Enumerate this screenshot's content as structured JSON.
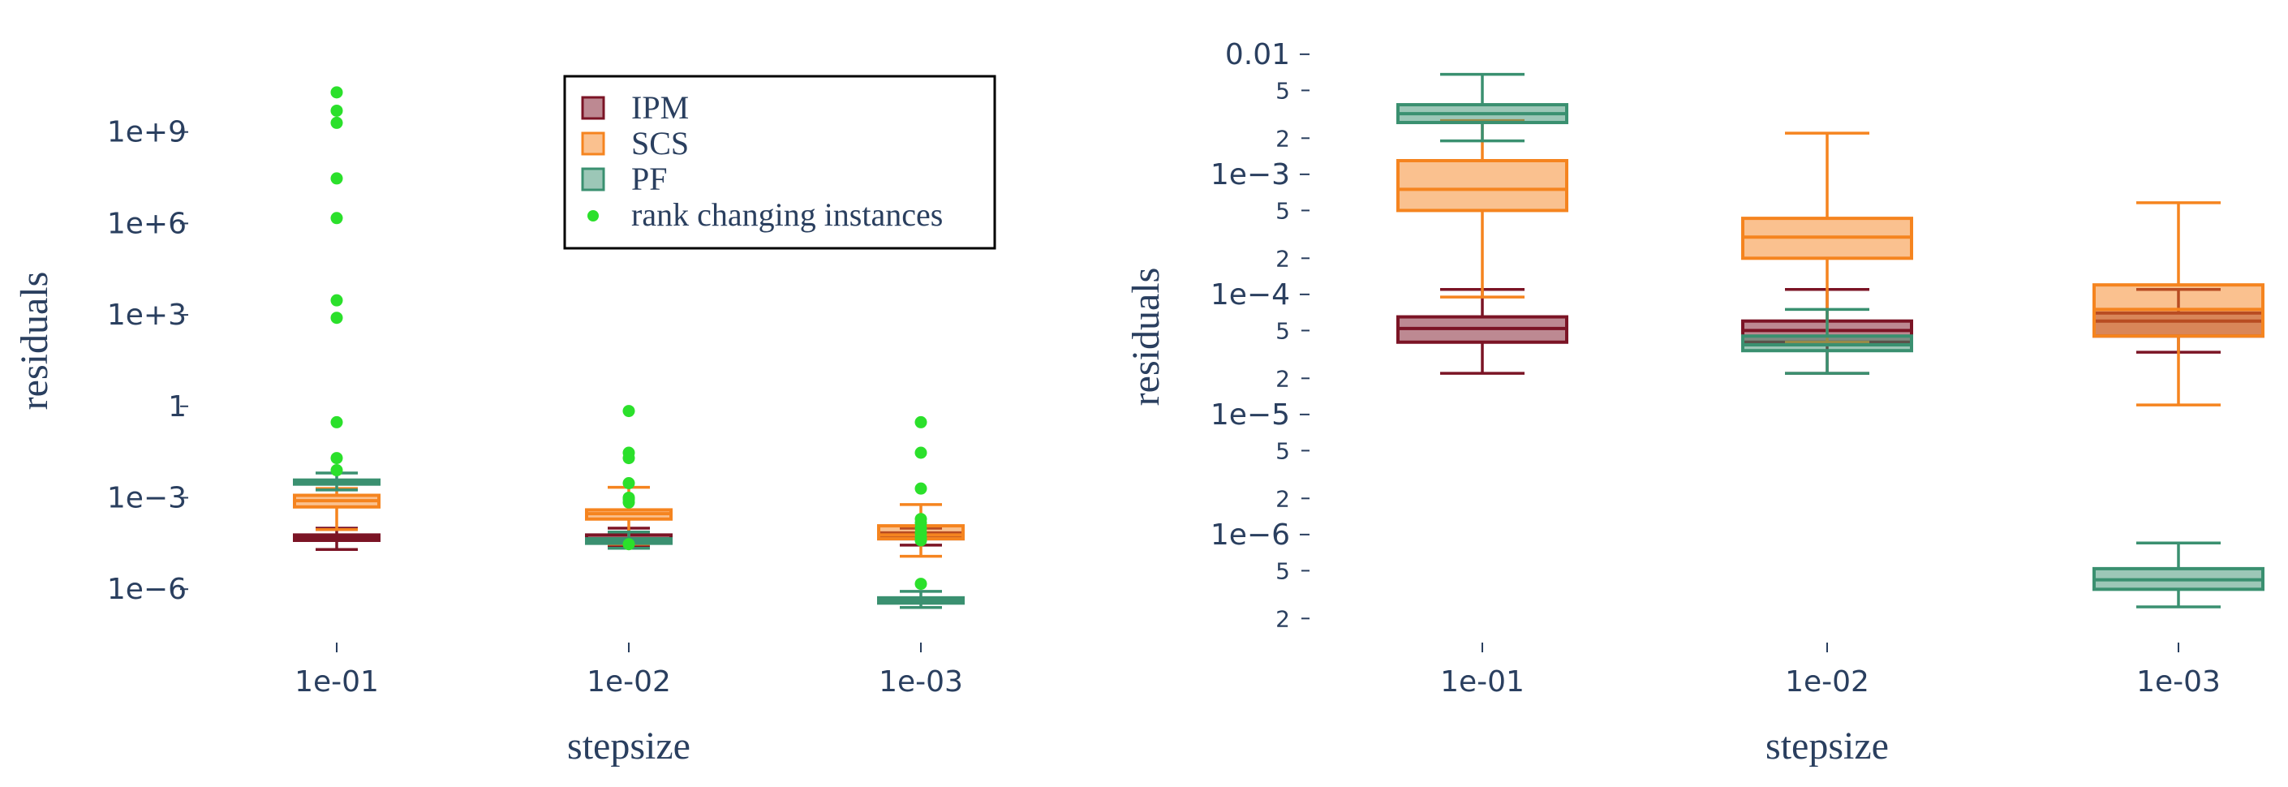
{
  "colors": {
    "IPM": "#7b1425",
    "SCS": "#f5841f",
    "PF": "#3a9070",
    "rank": "#2be02b",
    "axis_text": "#2a3f5f"
  },
  "chart_data": [
    {
      "type": "box",
      "xlabel": "stepsize",
      "ylabel": "residuals",
      "yscale": "log",
      "ylim": [
        2e-08,
        1000000000000.0
      ],
      "y_tick_values": [
        1000000000.0,
        1000000.0,
        1000.0,
        1,
        0.001,
        1e-06
      ],
      "y_tick_labels": [
        "1e+9",
        "1e+6",
        "1e+3",
        "1",
        "1e−3",
        "1e−6"
      ],
      "categories": [
        "1e-01",
        "1e-02",
        "1e-03"
      ],
      "legend": {
        "position": "top-center",
        "entries": [
          "IPM",
          "SCS",
          "PF",
          "rank changing instances"
        ]
      },
      "series": [
        {
          "name": "IPM",
          "boxes": [
            {
              "min": 2e-05,
              "q1": 4e-05,
              "median": 5e-05,
              "q3": 6e-05,
              "max": 0.0001
            },
            {
              "min": 2.5e-05,
              "q1": 3.5e-05,
              "median": 4.5e-05,
              "q3": 6e-05,
              "max": 0.0001
            },
            {
              "min": 2.8e-05,
              "q1": 4.5e-05,
              "median": 5.5e-05,
              "q3": 7e-05,
              "max": 0.0001
            }
          ]
        },
        {
          "name": "SCS",
          "boxes": [
            {
              "min": 9e-05,
              "q1": 0.0005,
              "median": 0.0008,
              "q3": 0.0012,
              "max": 0.002
            },
            {
              "min": 3e-05,
              "q1": 0.0002,
              "median": 0.0003,
              "q3": 0.0004,
              "max": 0.0022
            },
            {
              "min": 1.2e-05,
              "q1": 4.5e-05,
              "median": 6e-05,
              "q3": 0.00012,
              "max": 0.0006
            }
          ]
        },
        {
          "name": "PF",
          "boxes": [
            {
              "min": 0.0018,
              "q1": 0.0028,
              "median": 0.0032,
              "q3": 0.0038,
              "max": 0.0065
            },
            {
              "min": 2.2e-05,
              "q1": 3.2e-05,
              "median": 3.8e-05,
              "q3": 4.5e-05,
              "max": 7.5e-05
            },
            {
              "min": 2.5e-07,
              "q1": 3.5e-07,
              "median": 4.2e-07,
              "q3": 5.2e-07,
              "max": 8.5e-07
            }
          ]
        }
      ],
      "rank_changing_instances": [
        {
          "category": "1e-01",
          "values": [
            20000000000.0,
            5000000000.0,
            2000000000.0,
            30000000.0,
            1500000.0,
            3000.0,
            800,
            0.3,
            0.02,
            0.008
          ]
        },
        {
          "category": "1e-02",
          "values": [
            0.7,
            0.03,
            0.02,
            0.003,
            0.001,
            0.0009,
            0.0007,
            3e-05
          ]
        },
        {
          "category": "1e-03",
          "values": [
            0.3,
            0.03,
            0.002,
            0.0002,
            0.00015,
            0.0001,
            7e-05,
            5e-05,
            4e-05,
            1.5e-06
          ]
        }
      ]
    },
    {
      "type": "box",
      "xlabel": "stepsize",
      "ylabel": "residuals",
      "yscale": "log",
      "ylim": [
        1.3e-07,
        0.013
      ],
      "y_tick_values": [
        0.01,
        0.001,
        0.0001,
        1e-05,
        1e-06
      ],
      "y_tick_labels": [
        "0.01",
        "1e−3",
        "1e−4",
        "1e−5",
        "1e−6"
      ],
      "y_minor_values": [
        0.005,
        0.002,
        0.0005,
        0.0002,
        5e-05,
        2e-05,
        5e-06,
        2e-06,
        5e-07,
        2e-07
      ],
      "y_minor_labels": [
        "5",
        "2",
        "5",
        "2",
        "5",
        "2",
        "5",
        "2",
        "5",
        "2"
      ],
      "categories": [
        "1e-01",
        "1e-02",
        "1e-03"
      ],
      "series": [
        {
          "name": "IPM",
          "boxes": [
            {
              "min": 2.2e-05,
              "q1": 4e-05,
              "median": 5.2e-05,
              "q3": 6.5e-05,
              "max": 0.00011
            },
            {
              "min": 2.2e-05,
              "q1": 4e-05,
              "median": 5e-05,
              "q3": 6e-05,
              "max": 0.00011
            },
            {
              "min": 3.3e-05,
              "q1": 4.5e-05,
              "median": 6e-05,
              "q3": 7e-05,
              "max": 0.00011
            }
          ]
        },
        {
          "name": "SCS",
          "boxes": [
            {
              "min": 9.5e-05,
              "q1": 0.0005,
              "median": 0.00075,
              "q3": 0.0013,
              "max": 0.0028
            },
            {
              "min": 4e-05,
              "q1": 0.0002,
              "median": 0.0003,
              "q3": 0.00043,
              "max": 0.0022
            },
            {
              "min": 1.2e-05,
              "q1": 4.5e-05,
              "median": 7.5e-05,
              "q3": 0.00012,
              "max": 0.00058
            }
          ]
        },
        {
          "name": "PF",
          "boxes": [
            {
              "min": 0.0019,
              "q1": 0.0027,
              "median": 0.0032,
              "q3": 0.0038,
              "max": 0.0068
            },
            {
              "min": 2.2e-05,
              "q1": 3.4e-05,
              "median": 3.8e-05,
              "q3": 4.5e-05,
              "max": 7.5e-05
            },
            {
              "min": 2.5e-07,
              "q1": 3.5e-07,
              "median": 4.2e-07,
              "q3": 5.2e-07,
              "max": 8.5e-07
            }
          ]
        }
      ]
    }
  ]
}
